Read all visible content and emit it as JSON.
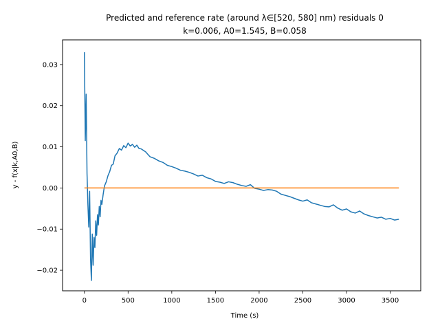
{
  "chart_data": {
    "type": "line",
    "title": "Predicted and reference rate (around λ∈[520, 580] nm) residuals 0",
    "subtitle": "k=0.006, A0=1.545, B=0.058",
    "xlabel": "Time (s)",
    "ylabel": "y - f(x|k,A0,B)",
    "xlim": [
      -250,
      3850
    ],
    "ylim": [
      -0.025,
      0.036
    ],
    "xticks": [
      0,
      500,
      1000,
      1500,
      2000,
      2500,
      3000,
      3500
    ],
    "xtick_labels": [
      "0",
      "500",
      "1000",
      "1500",
      "2000",
      "2500",
      "3000",
      "3500"
    ],
    "yticks": [
      -0.02,
      -0.01,
      0.0,
      0.01,
      0.02,
      0.03
    ],
    "ytick_labels": [
      "−0.02",
      "−0.01",
      "0.00",
      "0.01",
      "0.02",
      "0.03"
    ],
    "grid": false,
    "series": [
      {
        "color": "#1f77b4",
        "x": [
          0,
          10,
          20,
          30,
          40,
          50,
          60,
          70,
          80,
          90,
          100,
          110,
          120,
          130,
          140,
          150,
          160,
          170,
          180,
          190,
          200,
          215,
          230,
          250,
          270,
          290,
          310,
          330,
          350,
          375,
          400,
          425,
          450,
          475,
          500,
          525,
          550,
          575,
          600,
          625,
          650,
          700,
          750,
          800,
          850,
          900,
          950,
          1000,
          1050,
          1100,
          1150,
          1200,
          1250,
          1300,
          1350,
          1400,
          1450,
          1500,
          1550,
          1600,
          1650,
          1700,
          1750,
          1800,
          1850,
          1900,
          1950,
          2000,
          2050,
          2100,
          2150,
          2200,
          2250,
          2300,
          2350,
          2400,
          2450,
          2500,
          2550,
          2600,
          2650,
          2700,
          2750,
          2800,
          2850,
          2900,
          2950,
          3000,
          3050,
          3100,
          3150,
          3200,
          3250,
          3300,
          3350,
          3400,
          3450,
          3500,
          3550,
          3600
        ],
        "y": [
          0.033,
          0.0115,
          0.0228,
          0.0035,
          -0.004,
          -0.0095,
          -0.0008,
          -0.017,
          -0.0225,
          -0.0112,
          -0.0188,
          -0.012,
          -0.0145,
          -0.008,
          -0.0115,
          -0.0065,
          -0.009,
          -0.0045,
          -0.007,
          -0.003,
          -0.004,
          -0.0015,
          0.0005,
          0.0015,
          0.003,
          0.004,
          0.0055,
          0.0058,
          0.0078,
          0.0085,
          0.0096,
          0.0092,
          0.0103,
          0.0098,
          0.0109,
          0.0102,
          0.0106,
          0.0099,
          0.0104,
          0.0096,
          0.0095,
          0.0088,
          0.0076,
          0.0072,
          0.0066,
          0.0062,
          0.0055,
          0.0052,
          0.0048,
          0.0043,
          0.0041,
          0.0038,
          0.0034,
          0.0029,
          0.0031,
          0.0025,
          0.0022,
          0.0016,
          0.0014,
          0.0011,
          0.0015,
          0.0013,
          0.0009,
          0.0006,
          0.0004,
          0.0008,
          -0.0001,
          -0.0003,
          -0.0006,
          -0.0004,
          -0.0005,
          -0.0008,
          -0.0015,
          -0.0018,
          -0.0021,
          -0.0025,
          -0.0029,
          -0.0032,
          -0.0029,
          -0.0036,
          -0.0039,
          -0.0042,
          -0.0045,
          -0.0046,
          -0.0041,
          -0.0049,
          -0.0054,
          -0.0051,
          -0.0058,
          -0.0061,
          -0.0056,
          -0.0063,
          -0.0067,
          -0.007,
          -0.0073,
          -0.0071,
          -0.0076,
          -0.0074,
          -0.0078,
          -0.0076
        ]
      },
      {
        "color": "#ff7f0e",
        "x": [
          0,
          3600
        ],
        "y": [
          0,
          0
        ]
      }
    ]
  }
}
